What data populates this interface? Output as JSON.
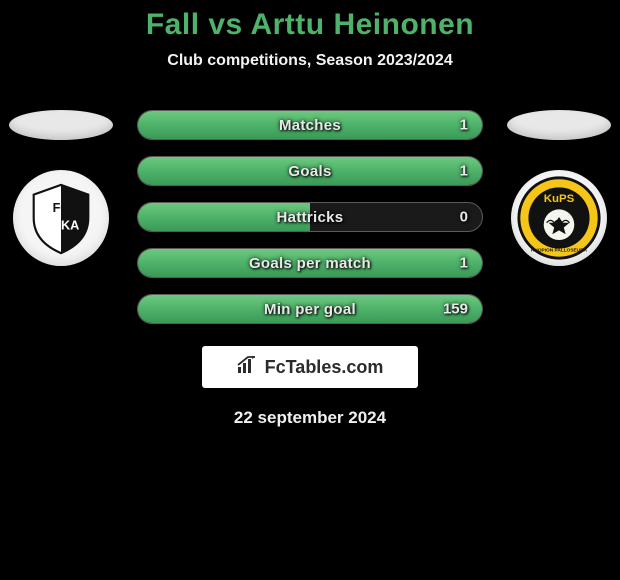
{
  "title": "Fall vs Arttu Heinonen",
  "subtitle": "Club competitions, Season 2023/2024",
  "colors": {
    "accent_green": "#4eb26a",
    "pill_border": "#5a5a5a",
    "pill_bg": "#1a1a1a",
    "text_light": "#e9e9e9",
    "background": "#000000"
  },
  "left_club": {
    "name": "FC Haka",
    "logo_id": "haka"
  },
  "right_club": {
    "name": "KuPS",
    "logo_id": "kups"
  },
  "stats": [
    {
      "label": "Matches",
      "right_value": "1",
      "fill_pct": 100,
      "full": true
    },
    {
      "label": "Goals",
      "right_value": "1",
      "fill_pct": 100,
      "full": true
    },
    {
      "label": "Hattricks",
      "right_value": "0",
      "fill_pct": 50,
      "full": false
    },
    {
      "label": "Goals per match",
      "right_value": "1",
      "fill_pct": 100,
      "full": true
    },
    {
      "label": "Min per goal",
      "right_value": "159",
      "fill_pct": 100,
      "full": true
    }
  ],
  "brand": {
    "text": "FcTables.com"
  },
  "date": "22 september 2024",
  "typography": {
    "title_fontsize": 30,
    "subtitle_fontsize": 16,
    "stat_label_fontsize": 15,
    "brand_fontsize": 18,
    "date_fontsize": 17
  }
}
